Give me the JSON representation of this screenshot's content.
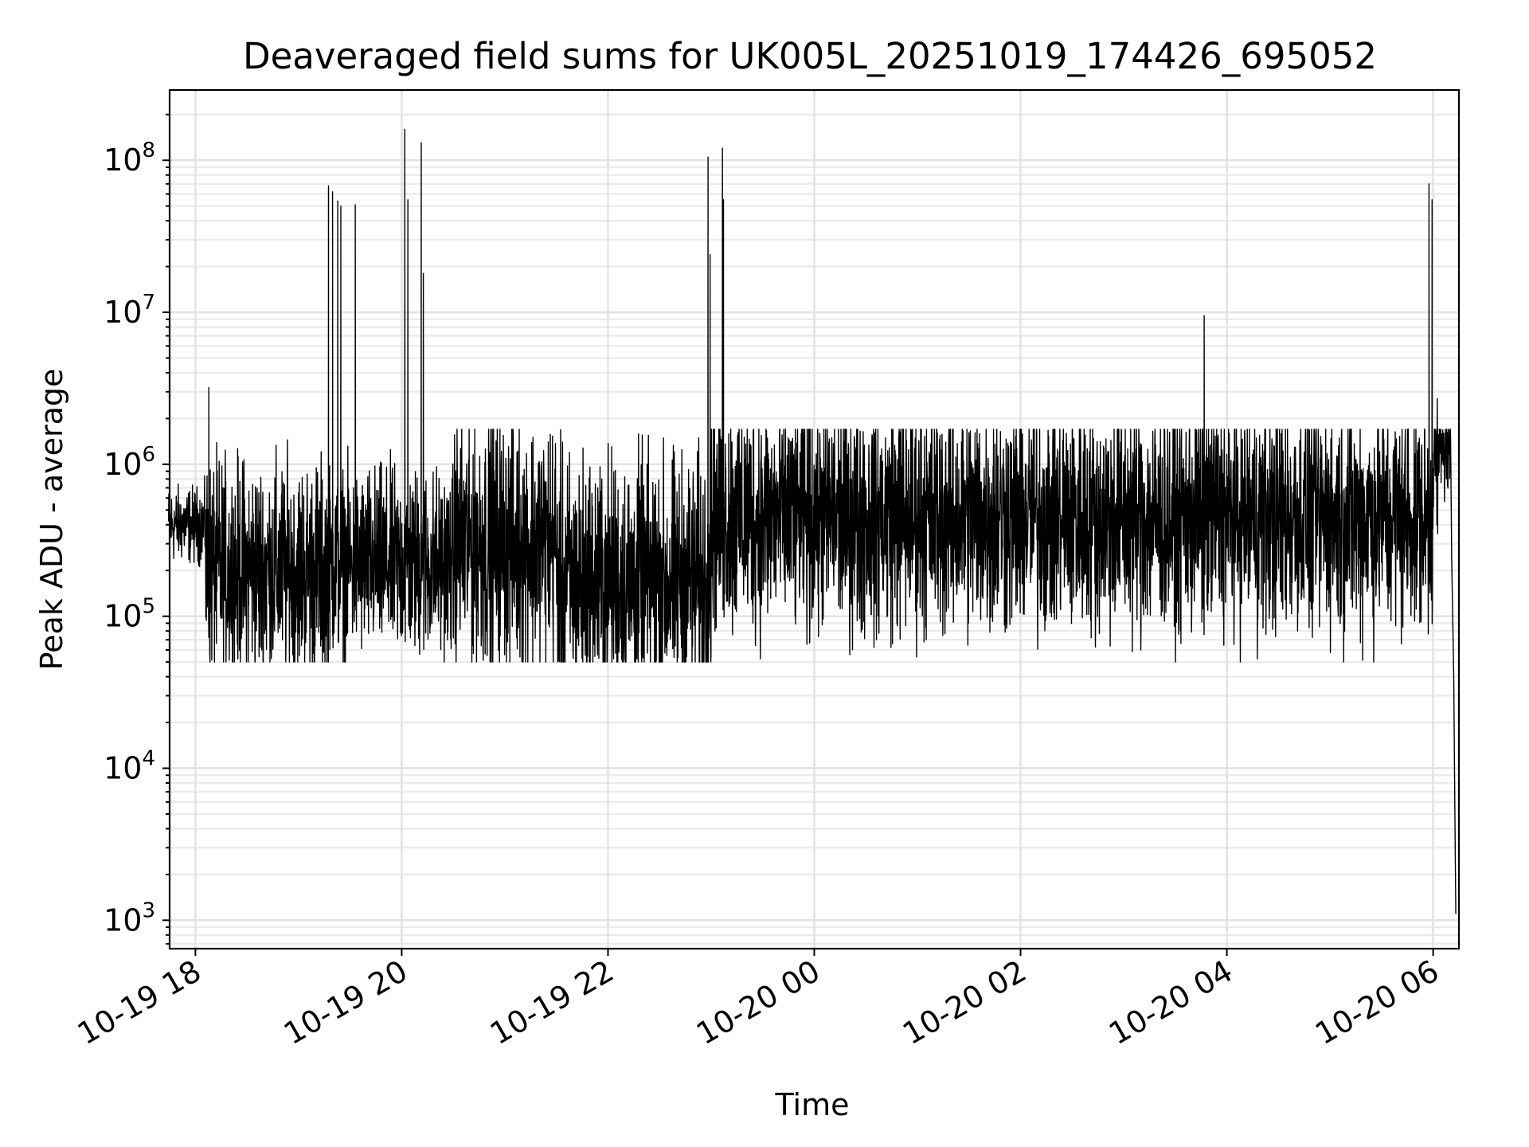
{
  "chart_data": {
    "type": "line",
    "title": "Deaveraged field sums for UK005L_20251019_174426_695052",
    "xlabel": "Time",
    "ylabel": "Peak ADU - average",
    "yscale": "log",
    "ylim": [
      650,
      290000000
    ],
    "xlim_hours": [
      -0.25,
      12.25
    ],
    "grid": true,
    "color": "#000000",
    "x_ticks": [
      {
        "h": 0,
        "label": "10-19 18"
      },
      {
        "h": 2,
        "label": "10-19 20"
      },
      {
        "h": 4,
        "label": "10-19 22"
      },
      {
        "h": 6,
        "label": "10-20 00"
      },
      {
        "h": 8,
        "label": "10-20 02"
      },
      {
        "h": 10,
        "label": "10-20 04"
      },
      {
        "h": 12,
        "label": "10-20 06"
      }
    ],
    "y_ticks": [
      {
        "exp": 3,
        "label": "10",
        "sup": "3"
      },
      {
        "exp": 4,
        "label": "10",
        "sup": "4"
      },
      {
        "exp": 5,
        "label": "10",
        "sup": "5"
      },
      {
        "exp": 6,
        "label": "10",
        "sup": "6"
      },
      {
        "exp": 7,
        "label": "10",
        "sup": "7"
      },
      {
        "exp": 8,
        "label": "10",
        "sup": "8"
      }
    ],
    "series": [
      {
        "name": "Peak ADU - average",
        "start_hour": -0.26,
        "end_hour": 12.22,
        "baseline_segments": [
          {
            "from_h": -0.26,
            "to_h": 0.1,
            "median": 400000,
            "spread_dex": 0.12
          },
          {
            "from_h": 0.1,
            "to_h": 1.3,
            "median": 200000,
            "spread_dex": 0.35
          },
          {
            "from_h": 1.3,
            "to_h": 2.5,
            "median": 220000,
            "spread_dex": 0.3
          },
          {
            "from_h": 2.5,
            "to_h": 3.5,
            "median": 300000,
            "spread_dex": 0.4
          },
          {
            "from_h": 3.5,
            "to_h": 5.0,
            "median": 170000,
            "spread_dex": 0.4
          },
          {
            "from_h": 5.0,
            "to_h": 12.0,
            "median": 450000,
            "spread_dex": 0.38
          },
          {
            "from_h": 12.0,
            "to_h": 12.2,
            "median": 1200000,
            "spread_dex": 0.15
          }
        ],
        "spikes": [
          {
            "h": 1.29,
            "value": 68000000
          },
          {
            "h": 1.33,
            "value": 62000000
          },
          {
            "h": 1.38,
            "value": 54000000
          },
          {
            "h": 1.41,
            "value": 50000000
          },
          {
            "h": 1.55,
            "value": 51000000
          },
          {
            "h": 2.03,
            "value": 160000000
          },
          {
            "h": 2.06,
            "value": 55000000
          },
          {
            "h": 2.19,
            "value": 130000000
          },
          {
            "h": 2.21,
            "value": 18000000
          },
          {
            "h": 0.13,
            "value": 3200000
          },
          {
            "h": 4.97,
            "value": 105000000
          },
          {
            "h": 4.99,
            "value": 24000000
          },
          {
            "h": 5.11,
            "value": 120000000
          },
          {
            "h": 5.12,
            "value": 55000000
          },
          {
            "h": 9.78,
            "value": 9500000
          },
          {
            "h": 11.96,
            "value": 70000000
          },
          {
            "h": 11.99,
            "value": 55000000
          },
          {
            "h": 12.04,
            "value": 2700000
          }
        ],
        "tail": [
          {
            "h": 12.18,
            "value": 240000
          },
          {
            "h": 12.2,
            "value": 40000
          },
          {
            "h": 12.21,
            "value": 6000
          },
          {
            "h": 12.22,
            "value": 1100
          }
        ],
        "min_value": 1100,
        "max_value": 160000000
      }
    ]
  }
}
